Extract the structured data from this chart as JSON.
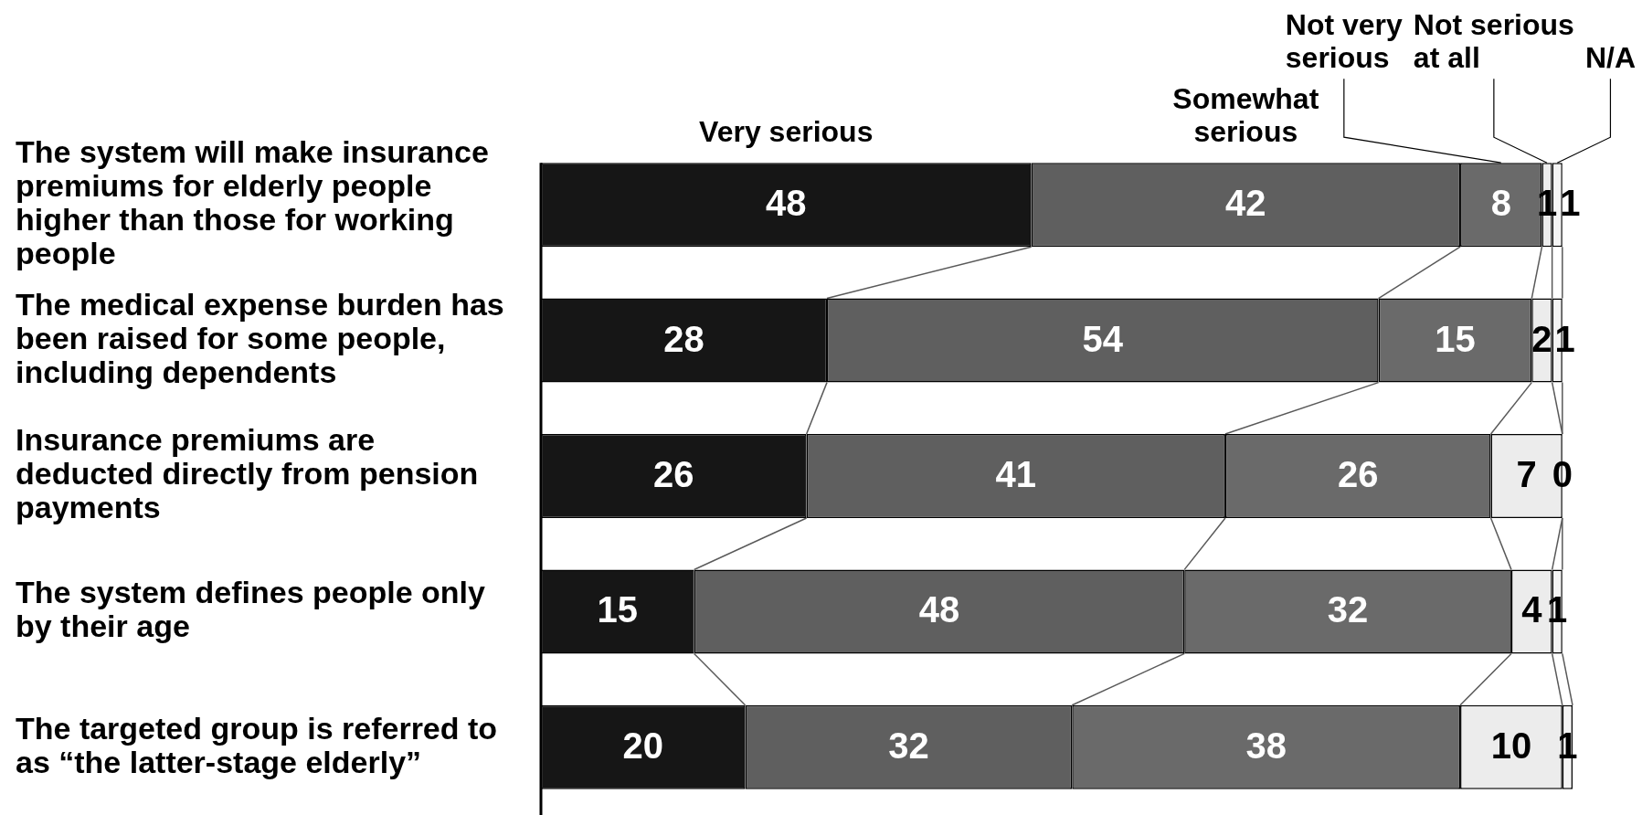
{
  "chart_data": {
    "type": "bar",
    "orientation": "horizontal",
    "stacked": true,
    "categories": [
      "The system will make insurance premiums for elderly people higher than those for working people",
      "The medical expense burden has been raised for some people, including dependents",
      "Insurance premiums are deducted directly from pension payments",
      "The system defines people only by their age",
      "The targeted group is referred to as “the latter-stage elderly”"
    ],
    "series": [
      {
        "name": "Very serious",
        "color": "#161616",
        "values": [
          48,
          28,
          26,
          15,
          20
        ]
      },
      {
        "name": "Somewhat serious",
        "color": "#5f5f5f",
        "values": [
          42,
          54,
          41,
          48,
          32
        ]
      },
      {
        "name": "Not very serious",
        "color": "#6a6a6a",
        "values": [
          8,
          15,
          26,
          32,
          38
        ]
      },
      {
        "name": "Not serious at all",
        "color": "#ececec",
        "values": [
          1,
          2,
          7,
          4,
          10
        ]
      },
      {
        "name": "N/A",
        "color": "#f4f4f4",
        "values": [
          1,
          1,
          0,
          1,
          1
        ]
      }
    ],
    "xlim": [
      0,
      101
    ],
    "data_labels": true,
    "legend": "top",
    "tick_labels": "y"
  }
}
